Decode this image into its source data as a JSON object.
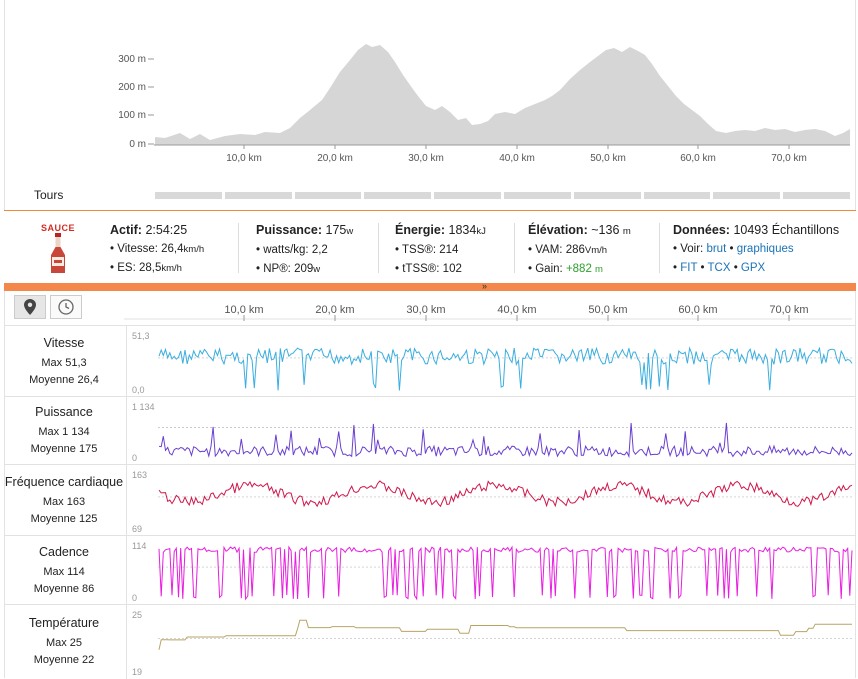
{
  "elevation": {
    "y_ticks": [
      "300 m",
      "200 m",
      "100 m",
      "0 m"
    ],
    "x_ticks": [
      "10,0 km",
      "20,0 km",
      "30,0 km",
      "40,0 km",
      "50,0 km",
      "60,0 km",
      "70,0 km"
    ],
    "fill_color": "#d6d6d6"
  },
  "tours": {
    "label": "Tours",
    "segments": 10
  },
  "summary": {
    "logo_text": "SAUCE",
    "actif": {
      "title": "Actif:",
      "value": "2:54:25",
      "l1_label": "Vitesse:",
      "l1_value": "26,4",
      "l1_unit": "km/h",
      "l2_label": "ES:",
      "l2_value": "28,5",
      "l2_unit": "km/h"
    },
    "puissance": {
      "title": "Puissance:",
      "value": "175",
      "unit": "w",
      "l1_label": "watts/kg:",
      "l1_value": "2,2",
      "l2_label": "NP®:",
      "l2_value": "209",
      "l2_unit": "w"
    },
    "energie": {
      "title": "Énergie:",
      "value": "1834",
      "unit": "kJ",
      "l1_label": "TSS®:",
      "l1_value": "214",
      "l2_label": "tTSS®:",
      "l2_value": "102"
    },
    "elevation": {
      "title": "Élévation:",
      "value": "~136",
      "unit": "m",
      "l1_label": "VAM:",
      "l1_value": "286",
      "l1_unit": "Vm/h",
      "l2_label": "Gain:",
      "l2_value": "+882",
      "l2_unit": "m"
    },
    "donnees": {
      "title": "Données:",
      "value": "10493",
      "unit": "Échantillons",
      "l1_label": "Voir:",
      "link_brut": "brut",
      "link_graphiques": "graphiques",
      "link_fit": "FIT",
      "link_tcx": "TCX",
      "link_gpx": "GPX"
    }
  },
  "toolbar": {
    "pin_icon": "map-pin-icon",
    "clock_icon": "clock-icon"
  },
  "x_ticks": [
    "10,0 km",
    "20,0 km",
    "30,0 km",
    "40,0 km",
    "50,0 km",
    "60,0 km",
    "70,0 km"
  ],
  "tracks": [
    {
      "name": "Vitesse",
      "max_label": "Max 51,3",
      "avg_label": "Moyenne 26,4",
      "top": "51,3",
      "bottom": "0,0",
      "color": "#3aaee0"
    },
    {
      "name": "Puissance",
      "max_label": "Max 1 134",
      "avg_label": "Moyenne 175",
      "top": "1 134",
      "bottom": "0",
      "color": "#6a3fd0"
    },
    {
      "name": "Fréquence cardiaque",
      "max_label": "Max 163",
      "avg_label": "Moyenne 125",
      "top": "163",
      "bottom": "69",
      "color": "#d0174a"
    },
    {
      "name": "Cadence",
      "max_label": "Max 114",
      "avg_label": "Moyenne 86",
      "top": "114",
      "bottom": "0",
      "color": "#e81ee0"
    },
    {
      "name": "Température",
      "max_label": "Max 25",
      "avg_label": "Moyenne 22",
      "top": "25",
      "bottom": "19",
      "color": "#b7a463"
    }
  ],
  "colors": {
    "accent": "#f3884a",
    "link": "#1a73b8",
    "gain": "#2ca02c"
  }
}
